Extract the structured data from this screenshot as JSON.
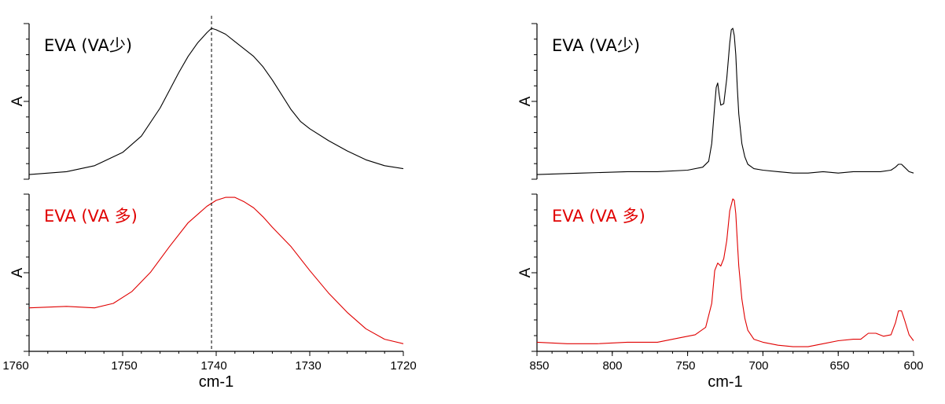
{
  "chart_data": [
    {
      "type": "line",
      "xlabel": "cm-1",
      "xlim": [
        1760,
        1720
      ],
      "x_ticks": [
        "1760",
        "1750",
        "1740",
        "1730",
        "1720"
      ],
      "reference_line_x": 1740.5,
      "panels": [
        {
          "label": "EVA (VA少)",
          "ylabel": "A",
          "color": "#000000",
          "x": [
            1760,
            1756,
            1753,
            1750,
            1748,
            1746,
            1745,
            1744,
            1743,
            1742,
            1741,
            1740.5,
            1740,
            1739,
            1738,
            1737,
            1736,
            1735,
            1734,
            1733,
            1732,
            1731,
            1730,
            1728,
            1726,
            1724,
            1722,
            1720
          ],
          "values": [
            0.01,
            0.03,
            0.07,
            0.16,
            0.27,
            0.46,
            0.58,
            0.7,
            0.81,
            0.9,
            0.97,
            1.0,
            0.99,
            0.96,
            0.91,
            0.86,
            0.81,
            0.74,
            0.65,
            0.55,
            0.45,
            0.37,
            0.32,
            0.24,
            0.17,
            0.11,
            0.07,
            0.05
          ]
        },
        {
          "label": "EVA (VA 多)",
          "ylabel": "A",
          "color": "#e00000",
          "x": [
            1760,
            1756,
            1753,
            1751,
            1749,
            1747,
            1745,
            1743,
            1741,
            1740,
            1739,
            1738,
            1737,
            1736,
            1735,
            1734,
            1732,
            1730,
            1728,
            1726,
            1724,
            1722,
            1720
          ],
          "values": [
            0.27,
            0.28,
            0.27,
            0.3,
            0.38,
            0.51,
            0.68,
            0.84,
            0.95,
            0.99,
            1.01,
            1.01,
            0.98,
            0.94,
            0.88,
            0.81,
            0.68,
            0.52,
            0.37,
            0.24,
            0.13,
            0.06,
            0.03
          ]
        }
      ]
    },
    {
      "type": "line",
      "xlabel": "cm-1",
      "xlim": [
        850,
        600
      ],
      "x_ticks": [
        "850",
        "800",
        "750",
        "700",
        "650",
        "600"
      ],
      "panels": [
        {
          "label": "EVA (VA少)",
          "ylabel": "A",
          "color": "#000000",
          "x": [
            850,
            820,
            790,
            770,
            750,
            740,
            736,
            734,
            732,
            731,
            730,
            729,
            728,
            726,
            724,
            722,
            721,
            720,
            719,
            718,
            717,
            716,
            714,
            712,
            710,
            706,
            700,
            690,
            680,
            670,
            660,
            650,
            640,
            630,
            622,
            615,
            612,
            610,
            608,
            606,
            603,
            600
          ],
          "values": [
            0.01,
            0.02,
            0.03,
            0.03,
            0.04,
            0.06,
            0.1,
            0.22,
            0.48,
            0.6,
            0.63,
            0.55,
            0.48,
            0.49,
            0.66,
            0.9,
            0.99,
            1.0,
            0.95,
            0.82,
            0.6,
            0.42,
            0.22,
            0.13,
            0.08,
            0.05,
            0.04,
            0.03,
            0.02,
            0.02,
            0.03,
            0.02,
            0.03,
            0.03,
            0.03,
            0.04,
            0.06,
            0.08,
            0.08,
            0.06,
            0.03,
            0.02
          ]
        },
        {
          "label": "EVA (VA 多)",
          "ylabel": "A",
          "color": "#e00000",
          "x": [
            850,
            830,
            810,
            790,
            770,
            755,
            745,
            738,
            734,
            732,
            730,
            728,
            726,
            724,
            722,
            720,
            719,
            718,
            717,
            716,
            714,
            712,
            710,
            706,
            700,
            690,
            680,
            670,
            660,
            650,
            640,
            635,
            630,
            625,
            620,
            615,
            612,
            610,
            608,
            606,
            603,
            600
          ],
          "values": [
            0.04,
            0.03,
            0.03,
            0.04,
            0.04,
            0.07,
            0.09,
            0.14,
            0.3,
            0.52,
            0.57,
            0.55,
            0.6,
            0.72,
            0.92,
            1.0,
            0.99,
            0.9,
            0.72,
            0.55,
            0.33,
            0.2,
            0.12,
            0.06,
            0.04,
            0.02,
            0.01,
            0.01,
            0.03,
            0.05,
            0.06,
            0.06,
            0.1,
            0.1,
            0.08,
            0.09,
            0.17,
            0.25,
            0.25,
            0.19,
            0.09,
            0.05
          ]
        }
      ]
    }
  ]
}
